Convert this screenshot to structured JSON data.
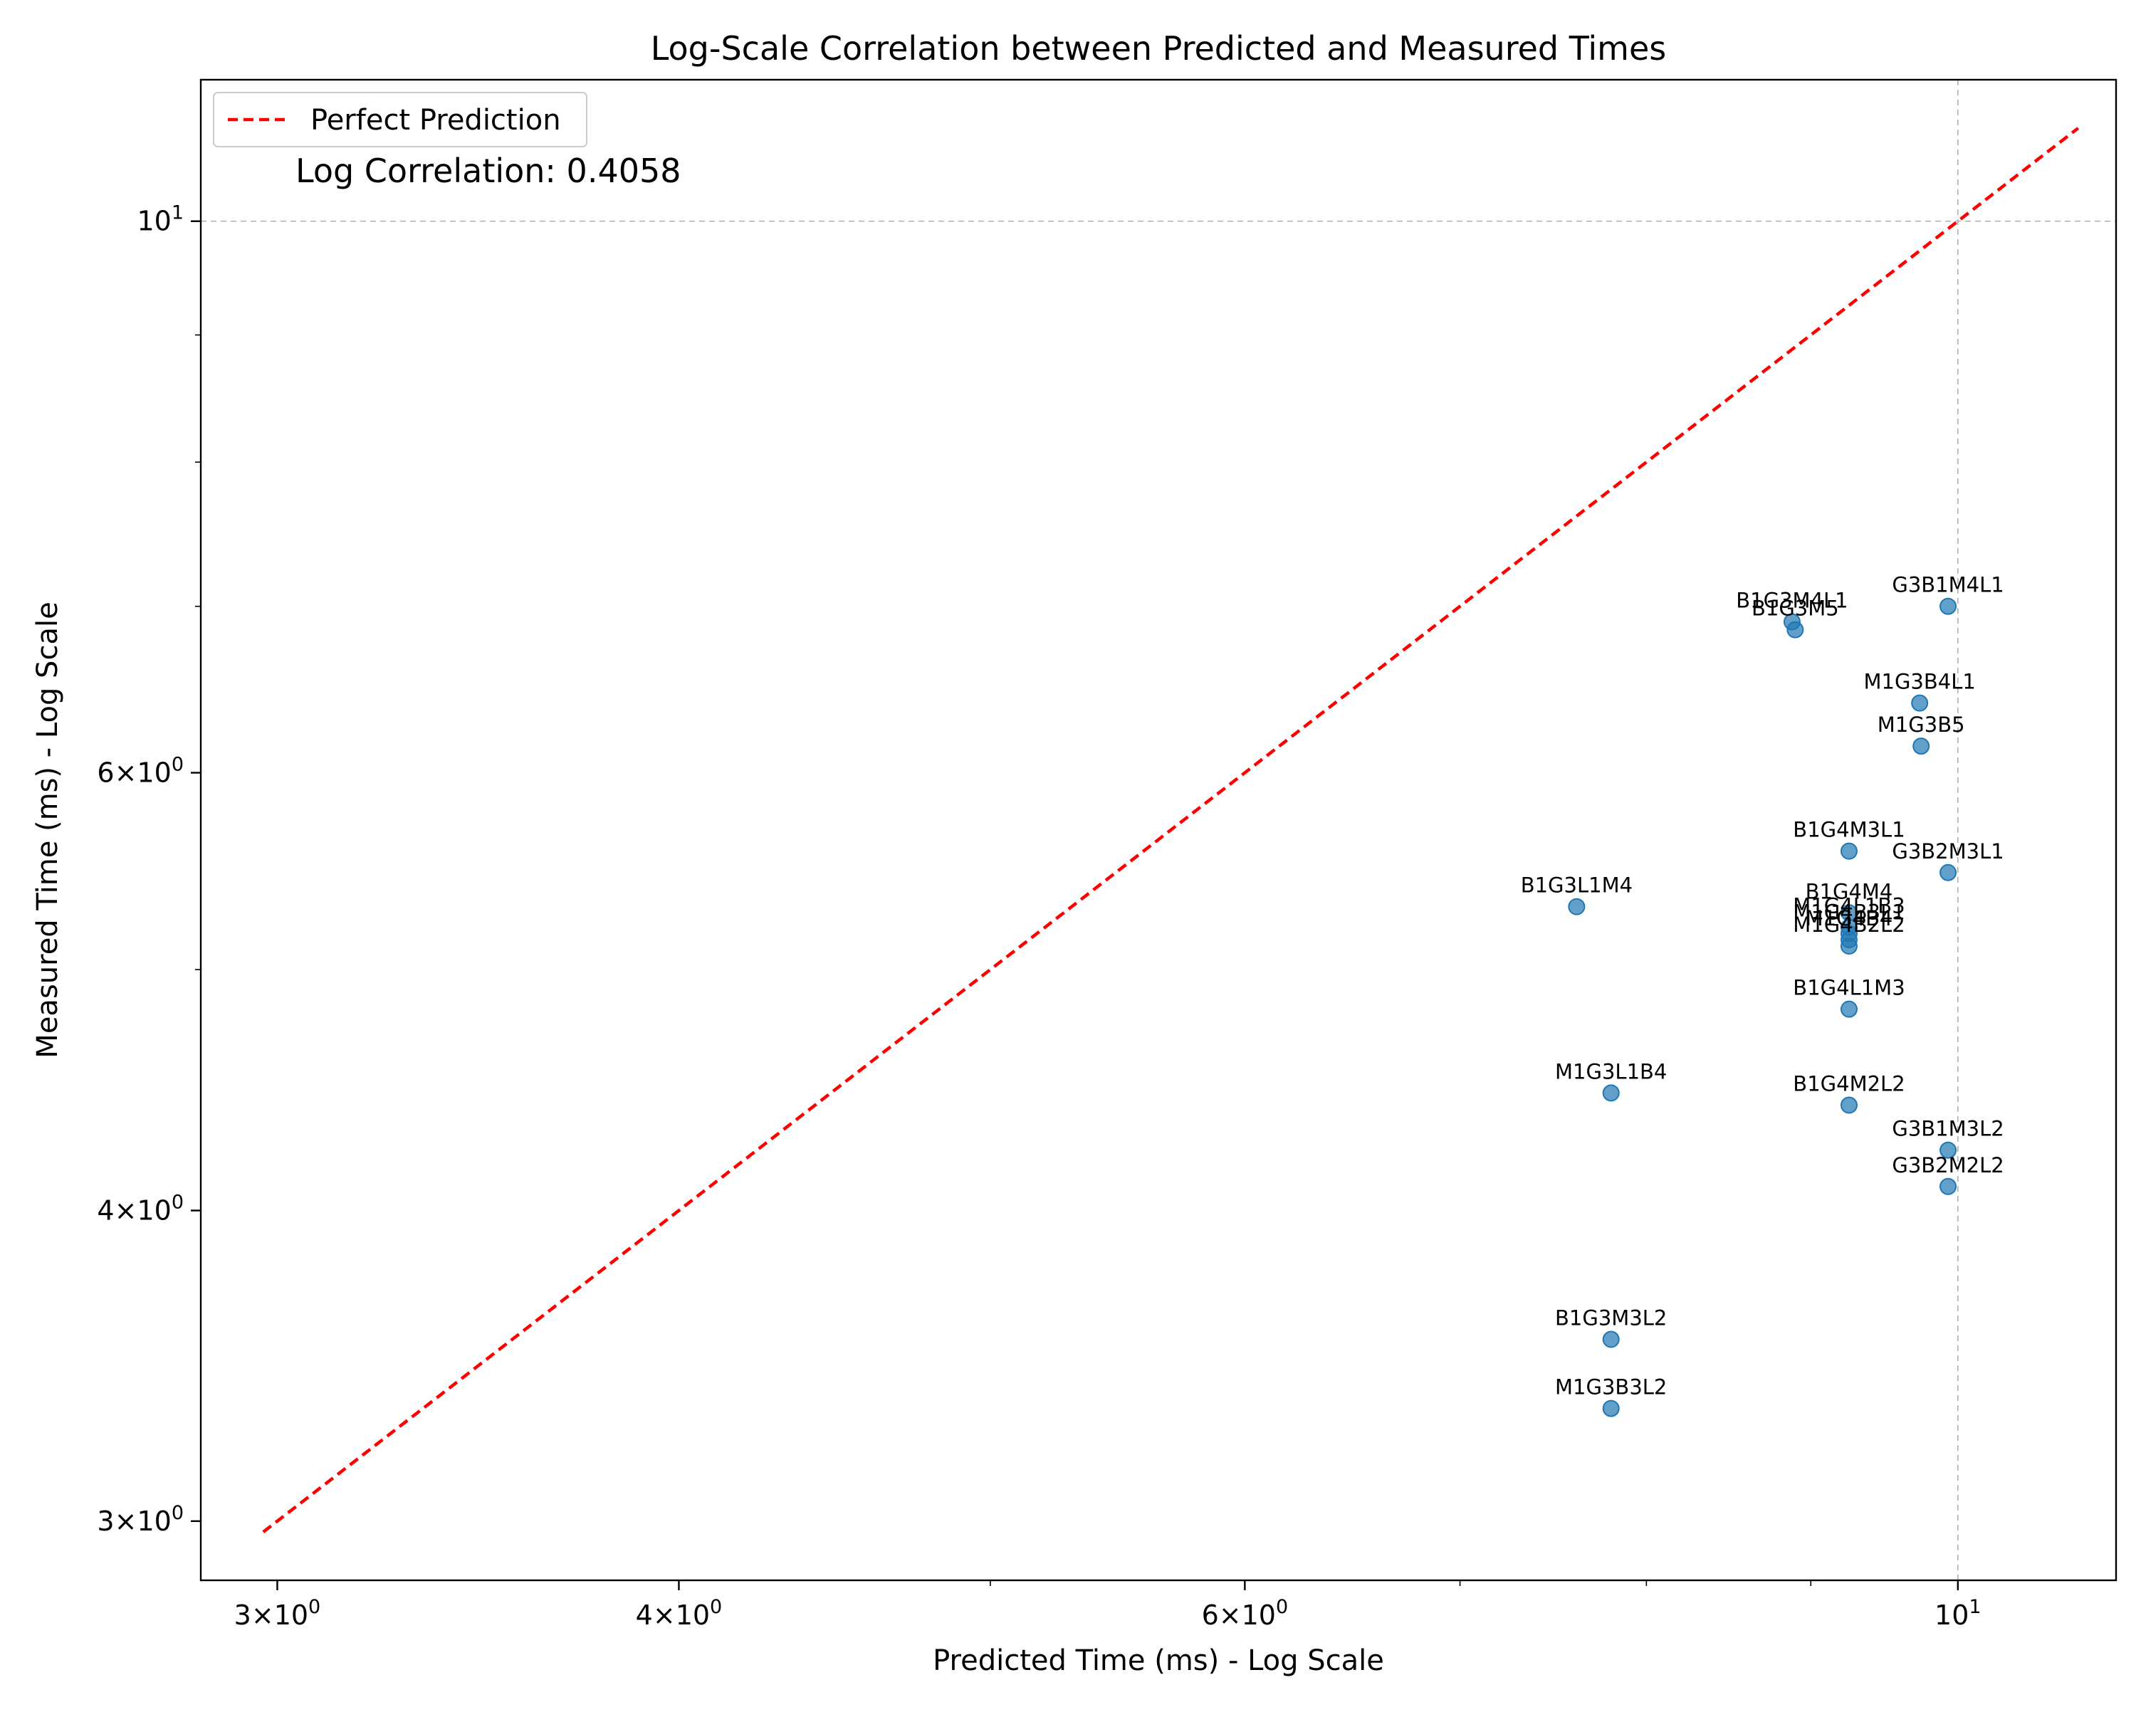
{
  "chart_data": {
    "type": "scatter",
    "title": "Log-Scale Correlation between Predicted and Measured Times",
    "xlabel": "Predicted Time (ms) - Log Scale",
    "ylabel": "Measured Time (ms) - Log Scale",
    "xscale": "log",
    "yscale": "log",
    "xlim": [
      2.84,
      11.2
    ],
    "ylim": [
      2.84,
      11.4
    ],
    "grid": "major ticks at 10 only, dashed gray",
    "legend": {
      "placement": "top-left",
      "entries": [
        "Perfect Prediction"
      ]
    },
    "annotation": "Log Correlation: 0.4058",
    "x_ticks": [
      {
        "value": 3,
        "base": "3",
        "mult": "×",
        "pow": "10",
        "exp": "0"
      },
      {
        "value": 4,
        "base": "4",
        "mult": "×",
        "pow": "10",
        "exp": "0"
      },
      {
        "value": 6,
        "base": "6",
        "mult": "×",
        "pow": "10",
        "exp": "0"
      },
      {
        "value": 10,
        "base": "",
        "mult": "",
        "pow": "10",
        "exp": "1"
      }
    ],
    "y_ticks": [
      {
        "value": 3,
        "base": "3",
        "mult": "×",
        "pow": "10",
        "exp": "0"
      },
      {
        "value": 4,
        "base": "4",
        "mult": "×",
        "pow": "10",
        "exp": "0"
      },
      {
        "value": 6,
        "base": "6",
        "mult": "×",
        "pow": "10",
        "exp": "0"
      },
      {
        "value": 10,
        "base": "",
        "mult": "",
        "pow": "10",
        "exp": "1"
      }
    ],
    "x_minor_ticks": [
      5,
      7,
      8,
      9
    ],
    "y_minor_ticks": [
      5,
      7,
      8,
      9
    ],
    "reference_line": {
      "name": "Perfect Prediction",
      "from": 2.97,
      "to": 10.9,
      "color": "#ff0000"
    },
    "point_color": "#1f77b4",
    "points": [
      {
        "label": "G3B1M4L1",
        "x": 9.93,
        "y": 7.0
      },
      {
        "label": "B1G3M4L1",
        "x": 8.88,
        "y": 6.9
      },
      {
        "label": "B1G3M5",
        "x": 8.9,
        "y": 6.85
      },
      {
        "label": "M1G3B4L1",
        "x": 9.73,
        "y": 6.4
      },
      {
        "label": "M1G3B5",
        "x": 9.74,
        "y": 6.15
      },
      {
        "label": "B1G4M3L1",
        "x": 9.25,
        "y": 5.58
      },
      {
        "label": "G3B2M3L1",
        "x": 9.93,
        "y": 5.47
      },
      {
        "label": "B1G3L1M4",
        "x": 7.61,
        "y": 5.3
      },
      {
        "label": "B1G4M4",
        "x": 9.25,
        "y": 5.27
      },
      {
        "label": "M1G4L1B3",
        "x": 9.25,
        "y": 5.2
      },
      {
        "label": "M1G4B3L1",
        "x": 9.25,
        "y": 5.17
      },
      {
        "label": "M1G4B4",
        "x": 9.25,
        "y": 5.14
      },
      {
        "label": "M1G4B2L2",
        "x": 9.25,
        "y": 5.11
      },
      {
        "label": "B1G4L1M3",
        "x": 9.25,
        "y": 4.82
      },
      {
        "label": "M1G3L1B4",
        "x": 7.8,
        "y": 4.46
      },
      {
        "label": "B1G4M2L2",
        "x": 9.25,
        "y": 4.41
      },
      {
        "label": "G3B1M3L2",
        "x": 9.93,
        "y": 4.23
      },
      {
        "label": "G3B2M2L2",
        "x": 9.93,
        "y": 4.09
      },
      {
        "label": "B1G3M3L2",
        "x": 7.8,
        "y": 3.55
      },
      {
        "label": "M1G3B3L2",
        "x": 7.8,
        "y": 3.33
      }
    ]
  }
}
